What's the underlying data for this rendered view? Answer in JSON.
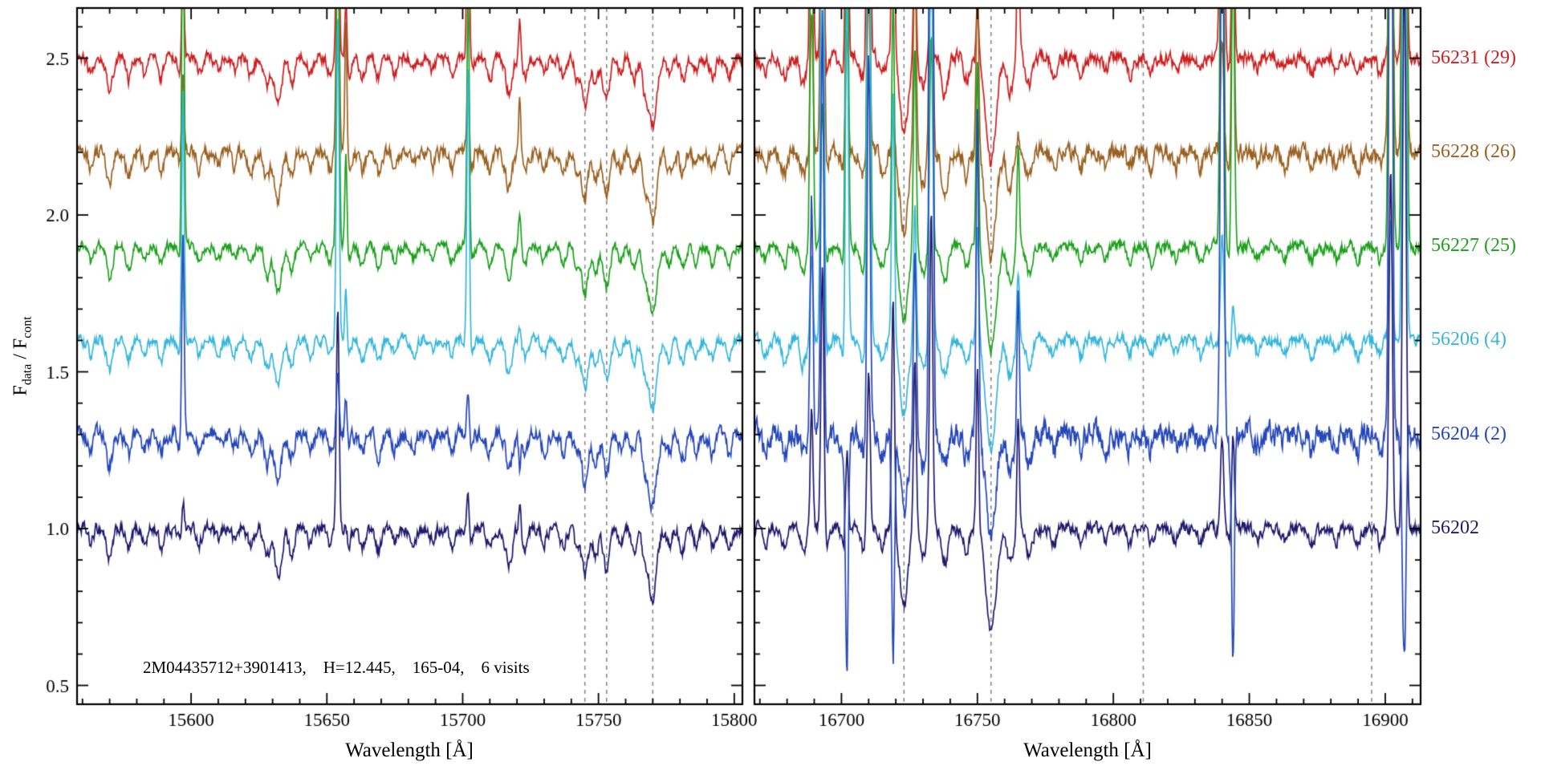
{
  "figure": {
    "background": "#ffffff",
    "annotation": "2M04435712+3901413,    H=12.445,    165-04,    6 visits",
    "ylabel": {
      "pre": "F",
      "sub1": "data",
      "mid": " / F",
      "sub2": "cont"
    }
  },
  "chart_data": {
    "type": "line",
    "title": "",
    "ylabel": "F_data / F_cont",
    "ylim": [
      0.44,
      2.66
    ],
    "yticks": [
      0.5,
      1.0,
      1.5,
      2.0,
      2.5
    ],
    "ytick_labels": [
      "0.5",
      "1.0",
      "1.5",
      "2.0",
      "2.5"
    ],
    "y_minor_step": 0.1,
    "grid": false,
    "legend_position": "right-outside",
    "series": [
      {
        "label": "56202",
        "color": "#201a6b",
        "offset": 1.0,
        "noise": [
          0.016,
          0.016
        ],
        "sky_strength": [
          0.5,
          0.9
        ],
        "sky_negative": false
      },
      {
        "label": "56204 (2)",
        "color": "#2547b8",
        "offset": 1.3,
        "noise": [
          0.02,
          0.032
        ],
        "sky_strength": [
          0.7,
          2.2
        ],
        "sky_negative": true
      },
      {
        "label": "56206 (4)",
        "color": "#37b6dc",
        "offset": 1.6,
        "noise": [
          0.014,
          0.016
        ],
        "sky_strength": [
          0.8,
          1.0
        ],
        "sky_negative": false
      },
      {
        "label": "56227 (25)",
        "color": "#1ea11e",
        "offset": 1.9,
        "noise": [
          0.013,
          0.015
        ],
        "sky_strength": [
          0.9,
          1.2
        ],
        "sky_negative": false
      },
      {
        "label": "56228 (26)",
        "color": "#9a6222",
        "offset": 2.2,
        "noise": [
          0.018,
          0.022
        ],
        "sky_strength": [
          0.6,
          1.1
        ],
        "sky_negative": false
      },
      {
        "label": "56231 (29)",
        "color": "#cc2020",
        "offset": 2.5,
        "noise": [
          0.015,
          0.018
        ],
        "sky_strength": [
          0.7,
          0.9
        ],
        "sky_negative": false
      }
    ],
    "panels": [
      {
        "xlabel": "Wavelength [Å]",
        "xlim": [
          15558,
          15803
        ],
        "xticks": [
          15600,
          15650,
          15700,
          15750,
          15800
        ],
        "x_minor_step": 10,
        "dashed_lines": [
          15745,
          15753,
          15770
        ],
        "dashed_line_color": "#8a8a8a",
        "absorption_lines": [
          [
            15563,
            0.05,
            0.9
          ],
          [
            15570,
            0.1,
            1.1
          ],
          [
            15577,
            0.07,
            1.0
          ],
          [
            15583,
            0.05,
            0.9
          ],
          [
            15589,
            0.06,
            0.9
          ],
          [
            15596,
            0.04,
            0.9
          ],
          [
            15603,
            0.05,
            0.9
          ],
          [
            15610,
            0.04,
            0.9
          ],
          [
            15616,
            0.04,
            0.8
          ],
          [
            15622,
            0.06,
            1.0
          ],
          [
            15628,
            0.09,
            1.0
          ],
          [
            15632,
            0.15,
            1.3
          ],
          [
            15637,
            0.08,
            1.0
          ],
          [
            15644,
            0.05,
            0.9
          ],
          [
            15651,
            0.05,
            0.9
          ],
          [
            15658,
            0.05,
            0.9
          ],
          [
            15663,
            0.06,
            1.0
          ],
          [
            15669,
            0.07,
            1.0
          ],
          [
            15675,
            0.05,
            0.9
          ],
          [
            15682,
            0.04,
            0.9
          ],
          [
            15689,
            0.04,
            0.9
          ],
          [
            15696,
            0.05,
            0.9
          ],
          [
            15703,
            0.05,
            0.9
          ],
          [
            15710,
            0.06,
            1.0
          ],
          [
            15717,
            0.11,
            1.2
          ],
          [
            15723,
            0.06,
            0.9
          ],
          [
            15730,
            0.05,
            0.9
          ],
          [
            15737,
            0.06,
            1.0
          ],
          [
            15742,
            0.06,
            0.9
          ],
          [
            15745,
            0.15,
            1.2
          ],
          [
            15749,
            0.08,
            1.0
          ],
          [
            15753,
            0.13,
            1.2
          ],
          [
            15758,
            0.05,
            0.9
          ],
          [
            15763,
            0.07,
            1.0
          ],
          [
            15767,
            0.09,
            1.0
          ],
          [
            15770,
            0.22,
            1.5
          ],
          [
            15776,
            0.06,
            1.0
          ],
          [
            15781,
            0.07,
            1.0
          ],
          [
            15786,
            0.05,
            0.9
          ],
          [
            15792,
            0.06,
            1.0
          ],
          [
            15798,
            0.06,
            1.0
          ]
        ],
        "sky_emission_lines": [
          [
            15597,
            0.9,
            0.45
          ],
          [
            15654,
            1.0,
            0.5
          ],
          [
            15657,
            0.5,
            0.4
          ],
          [
            15702,
            0.8,
            0.45
          ],
          [
            15721,
            0.25,
            0.4
          ]
        ]
      },
      {
        "xlabel": "Wavelength [Å]",
        "xlim": [
          16668,
          16913
        ],
        "xticks": [
          16700,
          16750,
          16800,
          16850,
          16900
        ],
        "x_minor_step": 10,
        "dashed_lines": [
          16723,
          16755,
          16811,
          16895
        ],
        "dashed_line_color": "#8a8a8a",
        "absorption_lines": [
          [
            16672,
            0.05,
            0.9
          ],
          [
            16679,
            0.06,
            1.0
          ],
          [
            16686,
            0.08,
            1.0
          ],
          [
            16694,
            0.06,
            1.0
          ],
          [
            16701,
            0.06,
            1.0
          ],
          [
            16708,
            0.07,
            1.0
          ],
          [
            16715,
            0.06,
            1.0
          ],
          [
            16723,
            0.24,
            1.5
          ],
          [
            16730,
            0.09,
            1.1
          ],
          [
            16738,
            0.11,
            1.2
          ],
          [
            16746,
            0.07,
            1.0
          ],
          [
            16755,
            0.34,
            1.8
          ],
          [
            16762,
            0.11,
            1.2
          ],
          [
            16769,
            0.09,
            1.1
          ],
          [
            16778,
            0.05,
            1.0
          ],
          [
            16788,
            0.05,
            0.9
          ],
          [
            16797,
            0.04,
            0.9
          ],
          [
            16806,
            0.05,
            0.9
          ],
          [
            16814,
            0.05,
            0.9
          ],
          [
            16823,
            0.04,
            0.9
          ],
          [
            16832,
            0.05,
            0.9
          ],
          [
            16843,
            0.05,
            0.9
          ],
          [
            16853,
            0.04,
            0.9
          ],
          [
            16863,
            0.04,
            0.9
          ],
          [
            16873,
            0.05,
            0.9
          ],
          [
            16882,
            0.04,
            0.9
          ],
          [
            16890,
            0.05,
            0.9
          ],
          [
            16898,
            0.05,
            0.9
          ],
          [
            16906,
            0.04,
            0.9
          ]
        ],
        "sky_emission_lines": [
          [
            16689,
            1.3,
            0.5
          ],
          [
            16693,
            1.8,
            0.55
          ],
          [
            16702,
            0.9,
            0.5
          ],
          [
            16710,
            1.6,
            0.55
          ],
          [
            16719,
            0.7,
            0.5
          ],
          [
            16727,
            0.8,
            0.5
          ],
          [
            16733,
            1.4,
            0.55
          ],
          [
            16750,
            0.5,
            0.45
          ],
          [
            16765,
            0.4,
            0.45
          ],
          [
            16840,
            1.8,
            0.6
          ],
          [
            16844,
            0.6,
            0.5
          ],
          [
            16902,
            1.5,
            0.6
          ],
          [
            16907,
            2.0,
            0.65
          ]
        ]
      }
    ]
  }
}
